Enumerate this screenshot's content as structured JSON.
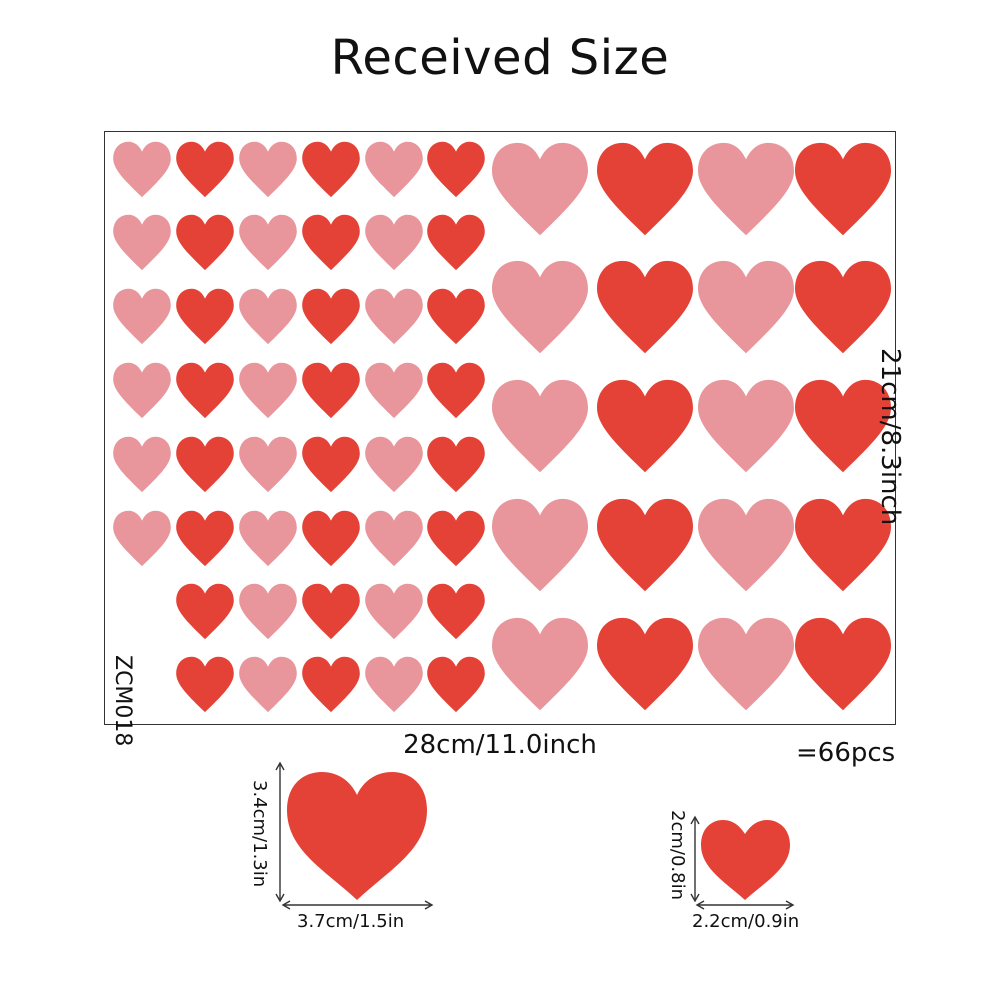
{
  "title": "Received Size",
  "sheet": {
    "product_code": "ZCM018",
    "height_label": "21cm/8.3inch",
    "width_label": "28cm/11.0inch",
    "count_label": "=66pcs"
  },
  "colors": {
    "pink": "#E8969B",
    "red": "#E54237",
    "border": "#333333"
  },
  "samples": {
    "large": {
      "height_label": "3.4cm/1.3in",
      "width_label": "3.7cm/1.5in"
    },
    "small": {
      "height_label": "2cm/0.8in",
      "width_label": "2.2cm/0.9in"
    }
  },
  "icons": [
    "heart-icon",
    "double-arrow-icon"
  ]
}
